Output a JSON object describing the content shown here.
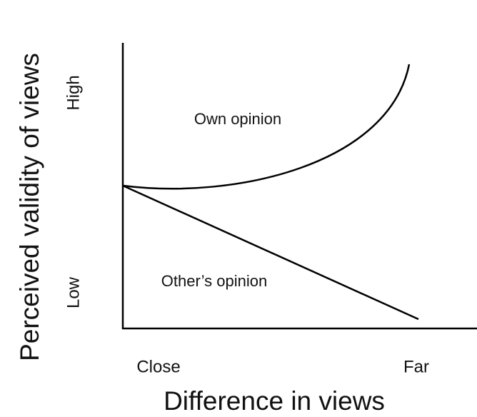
{
  "y_axis": {
    "title": "Perceived validity of views",
    "high": "High",
    "low": "Low"
  },
  "x_axis": {
    "title": "Difference in views",
    "close": "Close",
    "far": "Far"
  },
  "curves": {
    "own": "Own opinion",
    "other": "Other’s opinion"
  }
}
